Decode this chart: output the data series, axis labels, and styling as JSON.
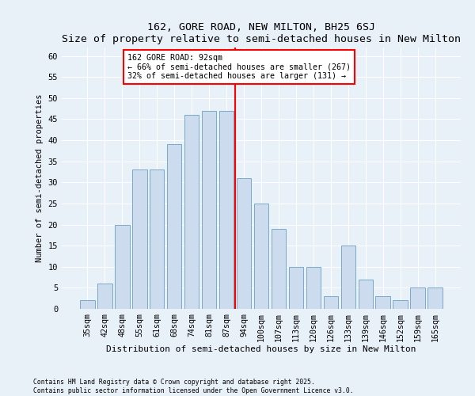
{
  "title": "162, GORE ROAD, NEW MILTON, BH25 6SJ",
  "subtitle": "Size of property relative to semi-detached houses in New Milton",
  "xlabel": "Distribution of semi-detached houses by size in New Milton",
  "ylabel": "Number of semi-detached properties",
  "categories": [
    "35sqm",
    "42sqm",
    "48sqm",
    "55sqm",
    "61sqm",
    "68sqm",
    "74sqm",
    "81sqm",
    "87sqm",
    "94sqm",
    "100sqm",
    "107sqm",
    "113sqm",
    "120sqm",
    "126sqm",
    "133sqm",
    "139sqm",
    "146sqm",
    "152sqm",
    "159sqm",
    "165sqm"
  ],
  "values": [
    2,
    6,
    20,
    33,
    33,
    39,
    46,
    47,
    47,
    31,
    25,
    19,
    10,
    10,
    3,
    15,
    7,
    3,
    2,
    5,
    5
  ],
  "bar_color": "#ccdcee",
  "bar_edge_color": "#7aaac8",
  "pct_smaller": 66,
  "pct_smaller_count": 267,
  "pct_larger": 32,
  "pct_larger_count": 131,
  "ylim": [
    0,
    62
  ],
  "yticks": [
    0,
    5,
    10,
    15,
    20,
    25,
    30,
    35,
    40,
    45,
    50,
    55,
    60
  ],
  "bg_color": "#e8f0f8",
  "grid_color": "#ffffff",
  "footer_line1": "Contains HM Land Registry data © Crown copyright and database right 2025.",
  "footer_line2": "Contains public sector information licensed under the Open Government Licence v3.0."
}
